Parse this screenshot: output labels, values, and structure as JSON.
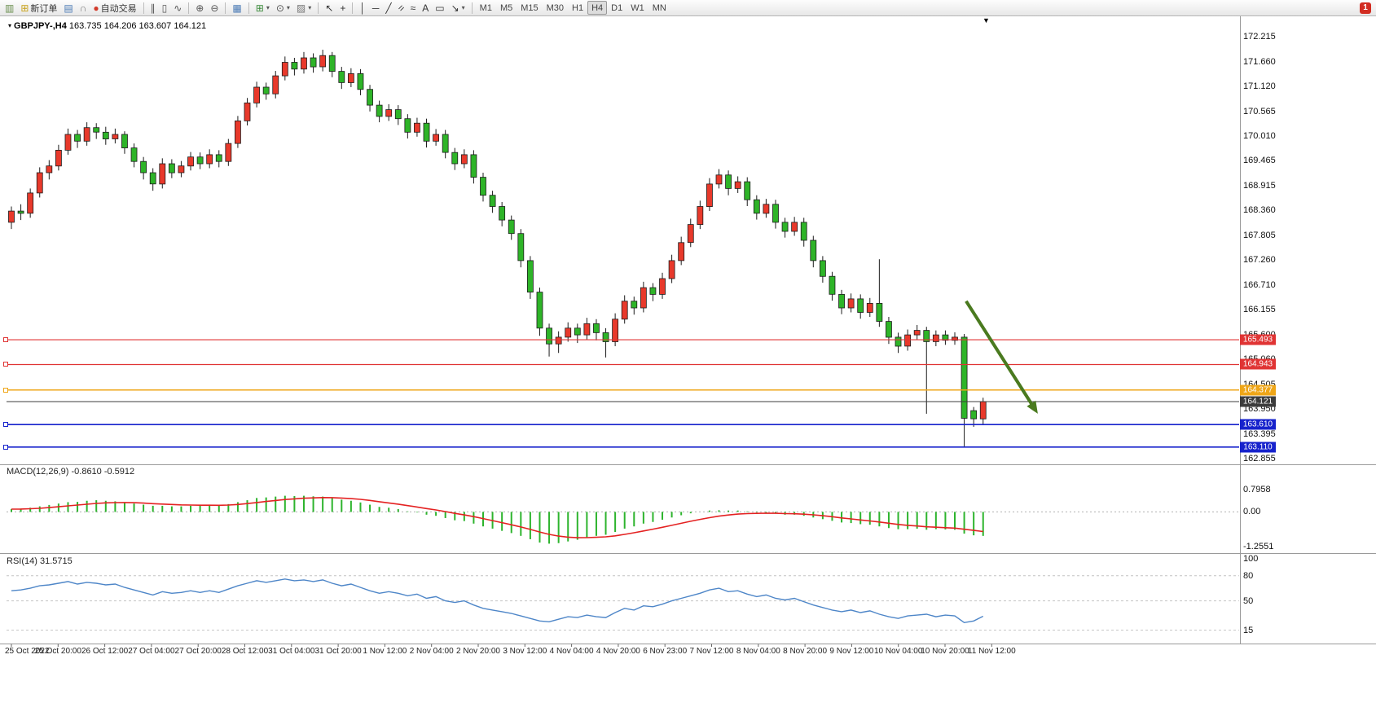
{
  "window": {
    "notification_badge": "1"
  },
  "toolbar": {
    "items": [
      {
        "name": "new-chart-icon",
        "glyph": "▥",
        "color": "#6a8f4f"
      },
      {
        "name": "new-order-button",
        "label": "新订单",
        "icon_glyph": "⊞",
        "icon_color": "#c8a21a"
      },
      {
        "name": "chart-profiles-icon",
        "glyph": "▤",
        "color": "#4a7ab5"
      },
      {
        "name": "support-icon",
        "glyph": "∩",
        "color": "#777777"
      },
      {
        "name": "auto-trading-button",
        "label": "自动交易",
        "icon_glyph": "●",
        "icon_color": "#d23a2a"
      },
      {
        "type": "sep"
      },
      {
        "name": "bar-chart-icon",
        "glyph": "∥",
        "color": "#555555"
      },
      {
        "name": "candlestick-chart-icon",
        "glyph": "▯",
        "color": "#555555"
      },
      {
        "name": "line-chart-icon",
        "glyph": "∿",
        "color": "#555555"
      },
      {
        "type": "sep"
      },
      {
        "name": "zoom-in-icon",
        "glyph": "⊕",
        "color": "#555555"
      },
      {
        "name": "zoom-out-icon",
        "glyph": "⊖",
        "color": "#555555"
      },
      {
        "type": "sep"
      },
      {
        "name": "tile-windows-icon",
        "glyph": "▦",
        "color": "#4a7ab5"
      },
      {
        "type": "sep"
      },
      {
        "name": "indicators-icon",
        "glyph": "⊞",
        "color": "#3a8a3a",
        "dropdown": true
      },
      {
        "name": "periods-icon",
        "glyph": "⊙",
        "color": "#555555",
        "dropdown": true
      },
      {
        "name": "templates-icon",
        "glyph": "▨",
        "color": "#777777",
        "dropdown": true
      },
      {
        "type": "sep"
      },
      {
        "name": "cursor-icon",
        "glyph": "↖",
        "color": "#333333"
      },
      {
        "name": "crosshair-icon",
        "glyph": "+",
        "color": "#333333"
      },
      {
        "type": "sep"
      },
      {
        "name": "vertical-line-icon",
        "glyph": "│",
        "color": "#333333"
      },
      {
        "name": "horizontal-line-icon",
        "glyph": "─",
        "color": "#333333"
      },
      {
        "name": "trendline-icon",
        "glyph": "╱",
        "color": "#333333"
      },
      {
        "name": "channel-icon",
        "glyph": "=",
        "color": "#333333",
        "rotate": true
      },
      {
        "name": "fibonacci-icon",
        "glyph": "≈",
        "color": "#333333"
      },
      {
        "name": "text-icon",
        "glyph": "A",
        "color": "#333333"
      },
      {
        "name": "text-label-icon",
        "glyph": "▭",
        "color": "#333333"
      },
      {
        "name": "arrows-icon",
        "glyph": "↘",
        "color": "#333333",
        "dropdown": true
      },
      {
        "type": "sep"
      },
      {
        "type": "timeframes"
      }
    ],
    "timeframes": [
      "M1",
      "M5",
      "M15",
      "M30",
      "H1",
      "H4",
      "D1",
      "W1",
      "MN"
    ],
    "active_timeframe": "H4"
  },
  "chart": {
    "collapse_marker": "▾",
    "symbol_period": "GBPJPY-,H4",
    "ohlc": "163.735 164.206 163.607 164.121",
    "bar_marker": "▼"
  },
  "chart_data": {
    "type": "candlestick",
    "symbol": "GBPJPY-",
    "timeframe": "H4",
    "title": "GBPJPY-,H4 163.735 164.206 163.607 164.121",
    "current_bar": {
      "open": 163.735,
      "high": 164.206,
      "low": 163.607,
      "close": 164.121
    },
    "ylim": [
      162.8,
      172.6
    ],
    "grid": false,
    "colors": {
      "bull": "#e8392b",
      "bear": "#2eb428",
      "outline": "#1c1c1c",
      "macd_hist": "#2db42d",
      "macd_signal": "#e42222",
      "rsi_line": "#4e86c8",
      "arrow": "#4a7a1f",
      "hline_red": "#e03434",
      "hline_orange": "#efa618",
      "hline_blue": "#1622cc",
      "bid_line": "#3c3c3c"
    },
    "price_axis_labels": [
      "172.215",
      "171.660",
      "171.120",
      "170.565",
      "170.010",
      "169.465",
      "168.915",
      "168.360",
      "167.805",
      "167.260",
      "166.710",
      "166.155",
      "165.600",
      "165.060",
      "164.505",
      "163.950",
      "163.395",
      "162.855"
    ],
    "candles": [
      [
        168.1,
        168.45,
        167.95,
        168.35
      ],
      [
        168.35,
        168.5,
        168.15,
        168.3
      ],
      [
        168.3,
        168.85,
        168.2,
        168.75
      ],
      [
        168.75,
        169.32,
        168.65,
        169.2
      ],
      [
        169.2,
        169.48,
        169.05,
        169.35
      ],
      [
        169.35,
        169.82,
        169.25,
        169.7
      ],
      [
        169.7,
        170.18,
        169.6,
        170.05
      ],
      [
        170.05,
        170.15,
        169.75,
        169.9
      ],
      [
        169.9,
        170.32,
        169.8,
        170.2
      ],
      [
        170.2,
        170.3,
        169.95,
        170.1
      ],
      [
        170.1,
        170.22,
        169.82,
        169.95
      ],
      [
        169.95,
        170.18,
        169.85,
        170.05
      ],
      [
        170.05,
        170.12,
        169.62,
        169.75
      ],
      [
        169.75,
        169.85,
        169.32,
        169.45
      ],
      [
        169.45,
        169.55,
        169.05,
        169.2
      ],
      [
        169.2,
        169.3,
        168.8,
        168.95
      ],
      [
        168.95,
        169.52,
        168.85,
        169.4
      ],
      [
        169.4,
        169.5,
        169.08,
        169.2
      ],
      [
        169.2,
        169.46,
        169.1,
        169.35
      ],
      [
        169.35,
        169.66,
        169.25,
        169.55
      ],
      [
        169.55,
        169.65,
        169.28,
        169.4
      ],
      [
        169.4,
        169.72,
        169.3,
        169.6
      ],
      [
        169.6,
        169.7,
        169.32,
        169.45
      ],
      [
        169.45,
        169.95,
        169.35,
        169.85
      ],
      [
        169.85,
        170.46,
        169.75,
        170.35
      ],
      [
        170.35,
        170.86,
        170.25,
        170.75
      ],
      [
        170.75,
        171.22,
        170.65,
        171.1
      ],
      [
        171.1,
        171.2,
        170.82,
        170.95
      ],
      [
        170.95,
        171.46,
        170.85,
        171.35
      ],
      [
        171.35,
        171.78,
        171.25,
        171.65
      ],
      [
        171.65,
        171.75,
        171.36,
        171.5
      ],
      [
        171.5,
        171.88,
        171.4,
        171.75
      ],
      [
        171.75,
        171.85,
        171.42,
        171.55
      ],
      [
        171.55,
        171.93,
        171.45,
        171.8
      ],
      [
        171.8,
        171.88,
        171.32,
        171.45
      ],
      [
        171.45,
        171.55,
        171.06,
        171.2
      ],
      [
        171.2,
        171.52,
        171.1,
        171.4
      ],
      [
        171.4,
        171.5,
        170.92,
        171.05
      ],
      [
        171.05,
        171.15,
        170.56,
        170.7
      ],
      [
        170.7,
        170.8,
        170.32,
        170.45
      ],
      [
        170.45,
        170.72,
        170.35,
        170.6
      ],
      [
        170.6,
        170.7,
        170.26,
        170.4
      ],
      [
        170.4,
        170.5,
        169.96,
        170.1
      ],
      [
        170.1,
        170.42,
        170.0,
        170.3
      ],
      [
        170.3,
        170.4,
        169.76,
        169.9
      ],
      [
        169.9,
        170.17,
        169.8,
        170.05
      ],
      [
        170.05,
        170.15,
        169.52,
        169.65
      ],
      [
        169.65,
        169.75,
        169.26,
        169.4
      ],
      [
        169.4,
        169.72,
        169.3,
        169.6
      ],
      [
        169.6,
        169.7,
        168.96,
        169.1
      ],
      [
        169.1,
        169.2,
        168.56,
        168.7
      ],
      [
        168.7,
        168.8,
        168.31,
        168.45
      ],
      [
        168.45,
        168.55,
        168.01,
        168.15
      ],
      [
        168.15,
        168.25,
        167.71,
        167.85
      ],
      [
        167.85,
        167.95,
        167.1,
        167.25
      ],
      [
        167.25,
        167.35,
        166.4,
        166.55
      ],
      [
        166.55,
        166.65,
        165.58,
        165.75
      ],
      [
        165.75,
        165.85,
        165.12,
        165.4
      ],
      [
        165.4,
        165.68,
        165.2,
        165.55
      ],
      [
        165.55,
        165.88,
        165.45,
        165.75
      ],
      [
        165.75,
        165.85,
        165.42,
        165.6
      ],
      [
        165.6,
        165.98,
        165.5,
        165.85
      ],
      [
        165.85,
        165.95,
        165.48,
        165.65
      ],
      [
        165.65,
        165.75,
        165.1,
        165.45
      ],
      [
        165.45,
        166.08,
        165.35,
        165.95
      ],
      [
        165.95,
        166.48,
        165.85,
        166.35
      ],
      [
        166.35,
        166.45,
        166.05,
        166.2
      ],
      [
        166.2,
        166.78,
        166.1,
        166.65
      ],
      [
        166.65,
        166.75,
        166.35,
        166.5
      ],
      [
        166.5,
        166.98,
        166.4,
        166.85
      ],
      [
        166.85,
        167.38,
        166.75,
        167.25
      ],
      [
        167.25,
        167.78,
        167.15,
        167.65
      ],
      [
        167.65,
        168.18,
        167.55,
        168.05
      ],
      [
        168.05,
        168.58,
        167.95,
        168.45
      ],
      [
        168.45,
        169.08,
        168.35,
        168.95
      ],
      [
        168.95,
        169.28,
        168.85,
        169.15
      ],
      [
        169.15,
        169.25,
        168.7,
        168.85
      ],
      [
        168.85,
        169.12,
        168.75,
        169.0
      ],
      [
        169.0,
        169.1,
        168.46,
        168.6
      ],
      [
        168.6,
        168.7,
        168.16,
        168.3
      ],
      [
        168.3,
        168.62,
        168.2,
        168.5
      ],
      [
        168.5,
        168.6,
        167.96,
        168.1
      ],
      [
        168.1,
        168.2,
        167.76,
        167.9
      ],
      [
        167.9,
        168.22,
        167.8,
        168.1
      ],
      [
        168.1,
        168.2,
        167.56,
        167.7
      ],
      [
        167.7,
        167.8,
        167.1,
        167.25
      ],
      [
        167.25,
        167.35,
        166.76,
        166.9
      ],
      [
        166.9,
        167.0,
        166.36,
        166.5
      ],
      [
        166.5,
        166.6,
        166.06,
        166.2
      ],
      [
        166.2,
        166.52,
        166.1,
        166.4
      ],
      [
        166.4,
        166.5,
        165.96,
        166.1
      ],
      [
        166.1,
        166.42,
        166.0,
        166.3
      ],
      [
        166.3,
        167.28,
        165.78,
        165.9
      ],
      [
        165.9,
        166.0,
        165.4,
        165.55
      ],
      [
        165.55,
        165.65,
        165.2,
        165.35
      ],
      [
        165.35,
        165.72,
        165.25,
        165.6
      ],
      [
        165.6,
        165.82,
        165.5,
        165.7
      ],
      [
        165.7,
        165.78,
        163.85,
        165.45
      ],
      [
        165.45,
        165.7,
        165.35,
        165.6
      ],
      [
        165.6,
        165.7,
        165.38,
        165.48
      ],
      [
        165.48,
        165.66,
        165.38,
        165.55
      ],
      [
        165.55,
        165.62,
        163.11,
        163.75
      ],
      [
        163.92,
        164.0,
        163.56,
        163.74
      ],
      [
        163.735,
        164.206,
        163.607,
        164.121
      ]
    ],
    "hlines": [
      {
        "price": 165.493,
        "label": "165.493",
        "color": "#e03434",
        "tag_bg": "#e03434",
        "style": "solid",
        "width": 1.2,
        "handle": true
      },
      {
        "price": 164.943,
        "label": "164.943",
        "color": "#e03434",
        "tag_bg": "#e03434",
        "style": "solid",
        "width": 1.2,
        "handle": true
      },
      {
        "price": 164.377,
        "label": "164.377",
        "color": "#efa618",
        "tag_bg": "#efa618",
        "style": "solid",
        "width": 1.5,
        "handle": true
      },
      {
        "price": 164.121,
        "label": "164.121",
        "color": "#3c3c3c",
        "tag_bg": "#3c3c3c",
        "style": "solid",
        "width": 1,
        "handle": false
      },
      {
        "price": 163.61,
        "label": "163.610",
        "color": "#1622cc",
        "tag_bg": "#1622cc",
        "style": "solid",
        "width": 1.6,
        "handle": true
      },
      {
        "price": 163.11,
        "label": "163.110",
        "color": "#1622cc",
        "tag_bg": "#1622cc",
        "style": "solid",
        "width": 1.6,
        "handle": true
      }
    ],
    "arrow": {
      "from": {
        "bar": 101.2,
        "price": 166.35
      },
      "to": {
        "bar": 108.8,
        "price": 163.85
      },
      "color": "#4a7a1f",
      "width": 4
    },
    "macd": {
      "label": "MACD(12,26,9)",
      "values_text": "-0.8610 -0.5912",
      "range": [
        -1.45,
        1.65
      ],
      "axis_labels": [
        {
          "v": 0.7958,
          "t": "0.7958"
        },
        {
          "v": 0,
          "t": "0.00"
        },
        {
          "v": -1.2551,
          "t": "-1.2551"
        }
      ],
      "main": [
        0.1,
        0.12,
        0.15,
        0.2,
        0.25,
        0.3,
        0.35,
        0.36,
        0.4,
        0.42,
        0.4,
        0.38,
        0.35,
        0.3,
        0.26,
        0.22,
        0.22,
        0.2,
        0.2,
        0.22,
        0.22,
        0.24,
        0.23,
        0.28,
        0.35,
        0.42,
        0.5,
        0.52,
        0.55,
        0.58,
        0.57,
        0.58,
        0.56,
        0.55,
        0.5,
        0.44,
        0.4,
        0.34,
        0.26,
        0.18,
        0.15,
        0.1,
        0.02,
        -0.02,
        -0.1,
        -0.14,
        -0.22,
        -0.3,
        -0.33,
        -0.42,
        -0.52,
        -0.6,
        -0.68,
        -0.76,
        -0.86,
        -0.98,
        -1.1,
        -1.14,
        -1.12,
        -1.06,
        -1.0,
        -0.92,
        -0.86,
        -0.82,
        -0.72,
        -0.6,
        -0.52,
        -0.42,
        -0.36,
        -0.28,
        -0.2,
        -0.12,
        -0.05,
        0.0,
        0.05,
        0.06,
        0.05,
        0.05,
        0.02,
        -0.02,
        -0.03,
        -0.06,
        -0.1,
        -0.1,
        -0.14,
        -0.2,
        -0.26,
        -0.32,
        -0.38,
        -0.4,
        -0.44,
        -0.46,
        -0.52,
        -0.58,
        -0.62,
        -0.62,
        -0.6,
        -0.64,
        -0.62,
        -0.63,
        -0.64,
        -0.78,
        -0.84,
        -0.861
      ]
    },
    "rsi": {
      "label": "RSI(14)",
      "values_text": "31.5715",
      "range": [
        0,
        105
      ],
      "levels": [
        80,
        50,
        15
      ],
      "axis_labels": [
        {
          "v": 100,
          "t": "100"
        },
        {
          "v": 80,
          "t": "80"
        },
        {
          "v": 50,
          "t": "50"
        },
        {
          "v": 15,
          "t": "15"
        }
      ],
      "values": [
        62,
        63,
        65,
        68,
        69,
        71,
        73,
        70,
        72,
        71,
        69,
        70,
        66,
        63,
        60,
        57,
        61,
        59,
        60,
        62,
        60,
        62,
        60,
        64,
        68,
        71,
        74,
        72,
        74,
        76,
        74,
        75,
        73,
        75,
        71,
        68,
        70,
        66,
        62,
        59,
        61,
        59,
        56,
        58,
        53,
        55,
        50,
        48,
        50,
        45,
        41,
        39,
        37,
        35,
        32,
        29,
        26,
        25,
        28,
        31,
        30,
        33,
        31,
        30,
        36,
        41,
        39,
        44,
        43,
        46,
        50,
        53,
        56,
        59,
        63,
        65,
        61,
        62,
        58,
        55,
        57,
        53,
        51,
        53,
        49,
        45,
        42,
        39,
        37,
        39,
        36,
        38,
        34,
        31,
        29,
        32,
        33,
        34,
        31,
        33,
        32,
        24,
        26,
        31.57
      ]
    },
    "time_labels": [
      "25 Oct 2022",
      "25 Oct 20:00",
      "26 Oct 12:00",
      "27 Oct 04:00",
      "27 Oct 20:00",
      "28 Oct 12:00",
      "31 Oct 04:00",
      "31 Oct 20:00",
      "1 Nov 12:00",
      "2 Nov 04:00",
      "2 Nov 20:00",
      "3 Nov 12:00",
      "4 Nov 04:00",
      "4 Nov 20:00",
      "6 Nov 23:00",
      "7 Nov 12:00",
      "8 Nov 04:00",
      "8 Nov 20:00",
      "9 Nov 12:00",
      "10 Nov 04:00",
      "10 Nov 20:00",
      "11 Nov 12:00"
    ]
  }
}
